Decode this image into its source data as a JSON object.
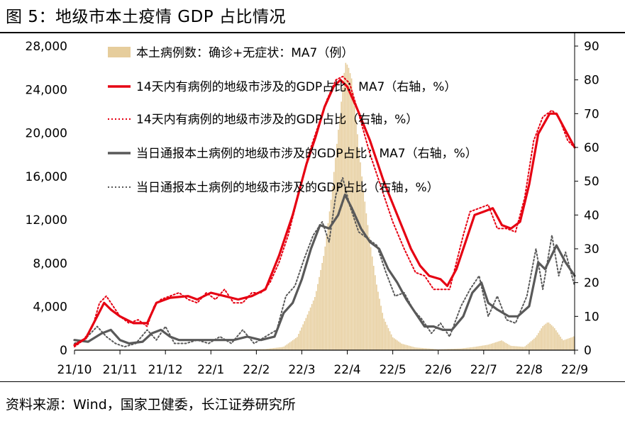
{
  "title": "图 5：地级市本土疫情 GDP 占比情况",
  "source": "资料来源：Wind，国家卫健委，长江证券研究所",
  "colors": {
    "bar": "#E6CD9C",
    "red": "#E60012",
    "gray": "#595959"
  },
  "chart_data": {
    "type": "bar+line",
    "x_tick_labels": [
      "21/10",
      "21/11",
      "21/12",
      "22/1",
      "22/2",
      "22/3",
      "22/4",
      "22/5",
      "22/6",
      "22/7",
      "22/8",
      "22/9"
    ],
    "y_left_ticks": [
      "0",
      "4,000",
      "8,000",
      "12,000",
      "16,000",
      "20,000",
      "24,000",
      "28,000"
    ],
    "y_right_ticks": [
      "0",
      "10",
      "20",
      "30",
      "40",
      "50",
      "60",
      "70",
      "80",
      "90"
    ],
    "ylim_left": [
      0,
      28000
    ],
    "ylim_right": [
      0,
      90
    ],
    "x_index_range": [
      0,
      11
    ],
    "legend": [
      "本土病例数：确诊+无症状：MA7（例）",
      "14天内有病例的地级市涉及的GDP占比：MA7（右轴，%）",
      "14天内有病例的地级市涉及的GDP占比（右轴，%）",
      "当日通报本土病例的地级市涉及的GDP占比：MA7（右轴，%）",
      "当日通报本土病例的地级市涉及的GDP占比（右轴，%）"
    ],
    "series": [
      {
        "axis": "left",
        "style": "area",
        "points": [
          [
            0,
            50
          ],
          [
            3.5,
            50
          ],
          [
            4.2,
            100
          ],
          [
            4.6,
            300
          ],
          [
            4.9,
            1200
          ],
          [
            5.1,
            3000
          ],
          [
            5.3,
            5000
          ],
          [
            5.5,
            9000
          ],
          [
            5.65,
            14000
          ],
          [
            5.8,
            20000
          ],
          [
            5.9,
            24000
          ],
          [
            5.96,
            26500
          ],
          [
            6.02,
            26200
          ],
          [
            6.1,
            25000
          ],
          [
            6.2,
            21000
          ],
          [
            6.35,
            15000
          ],
          [
            6.5,
            10000
          ],
          [
            6.65,
            6000
          ],
          [
            6.8,
            3000
          ],
          [
            7.0,
            1200
          ],
          [
            7.2,
            600
          ],
          [
            7.5,
            250
          ],
          [
            8.0,
            80
          ],
          [
            8.5,
            150
          ],
          [
            8.8,
            300
          ],
          [
            9.1,
            500
          ],
          [
            9.4,
            900
          ],
          [
            9.6,
            400
          ],
          [
            9.9,
            300
          ],
          [
            10.15,
            1200
          ],
          [
            10.3,
            2200
          ],
          [
            10.42,
            2600
          ],
          [
            10.55,
            2100
          ],
          [
            10.75,
            900
          ],
          [
            10.95,
            1200
          ],
          [
            11.1,
            1500
          ],
          [
            11.3,
            1200
          ],
          [
            11.5,
            900
          ],
          [
            11.8,
            500
          ],
          [
            11.95,
            400
          ]
        ]
      },
      {
        "axis": "right",
        "style": "solid-red",
        "points": [
          [
            0,
            1.5
          ],
          [
            0.25,
            3.5
          ],
          [
            0.5,
            10
          ],
          [
            0.65,
            14
          ],
          [
            0.8,
            12
          ],
          [
            1.0,
            10
          ],
          [
            1.3,
            8
          ],
          [
            1.6,
            8
          ],
          [
            1.8,
            14
          ],
          [
            2.1,
            15.5
          ],
          [
            2.5,
            16
          ],
          [
            2.7,
            15
          ],
          [
            3.0,
            17
          ],
          [
            3.3,
            16
          ],
          [
            3.6,
            15
          ],
          [
            3.9,
            16
          ],
          [
            4.2,
            18
          ],
          [
            4.5,
            28
          ],
          [
            4.8,
            40
          ],
          [
            5.1,
            55
          ],
          [
            5.3,
            63
          ],
          [
            5.5,
            72
          ],
          [
            5.7,
            78
          ],
          [
            5.85,
            80
          ],
          [
            6.0,
            78
          ],
          [
            6.2,
            72
          ],
          [
            6.5,
            62
          ],
          [
            6.8,
            50
          ],
          [
            7.1,
            40
          ],
          [
            7.4,
            30
          ],
          [
            7.6,
            25
          ],
          [
            7.8,
            22
          ],
          [
            8.05,
            21
          ],
          [
            8.2,
            19
          ],
          [
            8.4,
            24
          ],
          [
            8.6,
            32
          ],
          [
            8.8,
            40
          ],
          [
            9.0,
            41
          ],
          [
            9.2,
            42
          ],
          [
            9.4,
            37
          ],
          [
            9.6,
            36
          ],
          [
            9.8,
            38
          ],
          [
            10.0,
            49
          ],
          [
            10.2,
            64
          ],
          [
            10.45,
            70
          ],
          [
            10.6,
            70
          ],
          [
            10.8,
            65
          ],
          [
            11.0,
            60
          ]
        ]
      },
      {
        "axis": "right",
        "style": "dotted-red",
        "points": [
          [
            0,
            1
          ],
          [
            0.2,
            3
          ],
          [
            0.4,
            7
          ],
          [
            0.55,
            14
          ],
          [
            0.7,
            16
          ],
          [
            0.85,
            13
          ],
          [
            1.0,
            10
          ],
          [
            1.2,
            8
          ],
          [
            1.4,
            9
          ],
          [
            1.6,
            7
          ],
          [
            1.75,
            13
          ],
          [
            1.9,
            15
          ],
          [
            2.1,
            16
          ],
          [
            2.3,
            17
          ],
          [
            2.5,
            15
          ],
          [
            2.7,
            14
          ],
          [
            2.9,
            17
          ],
          [
            3.1,
            15
          ],
          [
            3.3,
            18
          ],
          [
            3.5,
            14
          ],
          [
            3.7,
            14
          ],
          [
            3.9,
            17
          ],
          [
            4.1,
            17
          ],
          [
            4.3,
            20
          ],
          [
            4.5,
            26
          ],
          [
            4.7,
            34
          ],
          [
            4.85,
            42
          ],
          [
            5.0,
            50
          ],
          [
            5.15,
            58
          ],
          [
            5.35,
            66
          ],
          [
            5.55,
            74
          ],
          [
            5.75,
            80
          ],
          [
            5.9,
            81
          ],
          [
            6.05,
            79
          ],
          [
            6.25,
            70
          ],
          [
            6.5,
            58
          ],
          [
            6.75,
            48
          ],
          [
            7.0,
            38
          ],
          [
            7.25,
            30
          ],
          [
            7.5,
            23
          ],
          [
            7.7,
            22
          ],
          [
            7.9,
            18
          ],
          [
            8.1,
            18
          ],
          [
            8.25,
            18
          ],
          [
            8.4,
            26
          ],
          [
            8.55,
            34
          ],
          [
            8.7,
            41
          ],
          [
            8.9,
            42
          ],
          [
            9.1,
            43
          ],
          [
            9.3,
            36
          ],
          [
            9.5,
            36
          ],
          [
            9.7,
            35
          ],
          [
            9.9,
            45
          ],
          [
            10.1,
            62
          ],
          [
            10.3,
            69
          ],
          [
            10.5,
            71
          ],
          [
            10.65,
            69
          ],
          [
            10.85,
            62
          ],
          [
            11.0,
            60
          ]
        ]
      },
      {
        "axis": "right",
        "style": "solid-gray",
        "points": [
          [
            0,
            3
          ],
          [
            0.3,
            2.5
          ],
          [
            0.6,
            5
          ],
          [
            0.8,
            6
          ],
          [
            1.0,
            3
          ],
          [
            1.2,
            2
          ],
          [
            1.5,
            2.5
          ],
          [
            1.7,
            5
          ],
          [
            1.9,
            6
          ],
          [
            2.1,
            4
          ],
          [
            2.3,
            3
          ],
          [
            2.6,
            3
          ],
          [
            2.9,
            3
          ],
          [
            3.2,
            3
          ],
          [
            3.5,
            3
          ],
          [
            3.8,
            4
          ],
          [
            4.1,
            3
          ],
          [
            4.4,
            4
          ],
          [
            4.6,
            11
          ],
          [
            4.8,
            14
          ],
          [
            5.0,
            21
          ],
          [
            5.2,
            30
          ],
          [
            5.4,
            37
          ],
          [
            5.6,
            36
          ],
          [
            5.8,
            40
          ],
          [
            5.95,
            46
          ],
          [
            6.1,
            42
          ],
          [
            6.3,
            36
          ],
          [
            6.5,
            32
          ],
          [
            6.7,
            30
          ],
          [
            6.9,
            24
          ],
          [
            7.1,
            20
          ],
          [
            7.3,
            15
          ],
          [
            7.5,
            11
          ],
          [
            7.7,
            7
          ],
          [
            7.9,
            7
          ],
          [
            8.1,
            6
          ],
          [
            8.3,
            6
          ],
          [
            8.55,
            10
          ],
          [
            8.75,
            17
          ],
          [
            8.95,
            20
          ],
          [
            9.1,
            14
          ],
          [
            9.3,
            12
          ],
          [
            9.55,
            10
          ],
          [
            9.75,
            10
          ],
          [
            10.0,
            13
          ],
          [
            10.2,
            26
          ],
          [
            10.35,
            24
          ],
          [
            10.6,
            31
          ],
          [
            10.8,
            26
          ],
          [
            11.0,
            22
          ]
        ]
      },
      {
        "axis": "right",
        "style": "dotted-gray",
        "points": [
          [
            0,
            2
          ],
          [
            0.25,
            3.5
          ],
          [
            0.5,
            7
          ],
          [
            0.7,
            4
          ],
          [
            0.9,
            2
          ],
          [
            1.1,
            1
          ],
          [
            1.35,
            2
          ],
          [
            1.6,
            6
          ],
          [
            1.8,
            3
          ],
          [
            2.0,
            7
          ],
          [
            2.2,
            2
          ],
          [
            2.45,
            2
          ],
          [
            2.7,
            3
          ],
          [
            2.95,
            2
          ],
          [
            3.2,
            4
          ],
          [
            3.45,
            2
          ],
          [
            3.7,
            6
          ],
          [
            3.95,
            2
          ],
          [
            4.2,
            4
          ],
          [
            4.45,
            6
          ],
          [
            4.65,
            16
          ],
          [
            4.85,
            19
          ],
          [
            5.05,
            27
          ],
          [
            5.25,
            34
          ],
          [
            5.45,
            38
          ],
          [
            5.6,
            32
          ],
          [
            5.75,
            46
          ],
          [
            5.9,
            51
          ],
          [
            6.05,
            43
          ],
          [
            6.25,
            35
          ],
          [
            6.45,
            33
          ],
          [
            6.65,
            31
          ],
          [
            6.85,
            23
          ],
          [
            7.05,
            16
          ],
          [
            7.25,
            17
          ],
          [
            7.45,
            12
          ],
          [
            7.65,
            9
          ],
          [
            7.85,
            5
          ],
          [
            8.05,
            8
          ],
          [
            8.25,
            4
          ],
          [
            8.5,
            13
          ],
          [
            8.7,
            18
          ],
          [
            8.9,
            22
          ],
          [
            9.1,
            10
          ],
          [
            9.3,
            16
          ],
          [
            9.5,
            9
          ],
          [
            9.7,
            8
          ],
          [
            9.95,
            16
          ],
          [
            10.15,
            30
          ],
          [
            10.3,
            18
          ],
          [
            10.5,
            34
          ],
          [
            10.65,
            22
          ],
          [
            10.8,
            29
          ],
          [
            11.0,
            19
          ]
        ]
      }
    ]
  }
}
